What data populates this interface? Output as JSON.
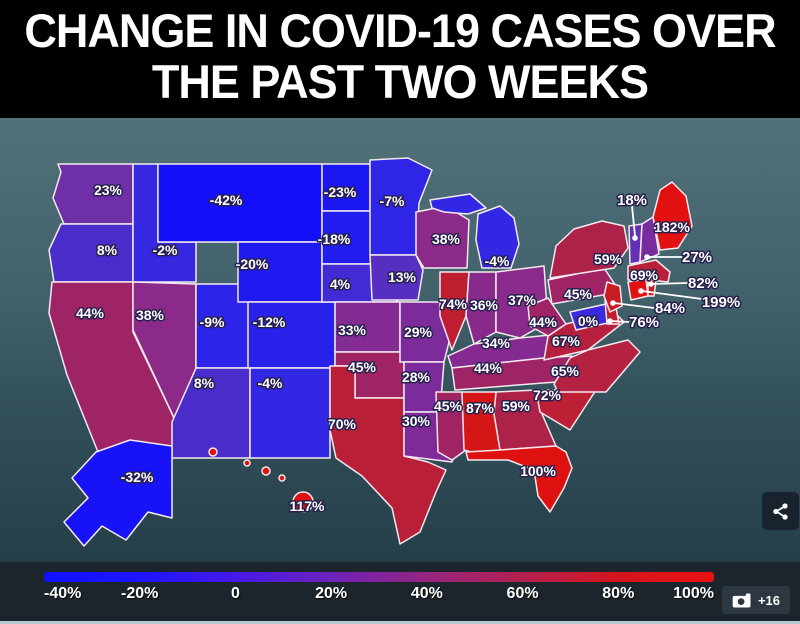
{
  "header": {
    "title": "CHANGE IN COVID-19 CASES OVER THE PAST TWO WEEKS",
    "title_lines": [
      "CHANGE IN COVID-19 CASES OVER",
      "THE PAST TWO WEEKS"
    ]
  },
  "overlay": {
    "photo_count_label": "+16"
  },
  "icons": {
    "share": "share-nodes-icon",
    "camera": "camera-icon"
  },
  "chart_data": {
    "type": "choropleth_map",
    "title": "Change in Covid-19 cases over the past two weeks",
    "geography": "United States (50 states)",
    "unit": "% change in cases",
    "legend": {
      "position": "bottom",
      "ticks": [
        "-40%",
        "-20%",
        "0",
        "20%",
        "40%",
        "60%",
        "80%",
        "100%"
      ],
      "tick_values": [
        -40,
        -20,
        0,
        20,
        40,
        60,
        80,
        100
      ],
      "gradient_stops": [
        "#1111ff",
        "#1d15fb",
        "#4619e6",
        "#6e22bb",
        "#95257f",
        "#b21f4e",
        "#d4151e",
        "#e81010"
      ]
    },
    "states": [
      {
        "id": "WA",
        "name": "Washington",
        "value": 23,
        "label": "23%",
        "color": "#6e2fa7",
        "callout": false
      },
      {
        "id": "OR",
        "name": "Oregon",
        "value": 8,
        "label": "8%",
        "color": "#4a2ccb",
        "callout": false
      },
      {
        "id": "CA",
        "name": "California",
        "value": 44,
        "label": "44%",
        "color": "#9e2466",
        "callout": false
      },
      {
        "id": "ID",
        "name": "Idaho",
        "value": -2,
        "label": "-2%",
        "color": "#3628e0",
        "callout": false
      },
      {
        "id": "NV",
        "name": "Nevada",
        "value": 38,
        "label": "38%",
        "color": "#8b2a88",
        "callout": false
      },
      {
        "id": "UT",
        "name": "Utah",
        "value": -9,
        "label": "-9%",
        "color": "#2c24e8",
        "callout": false
      },
      {
        "id": "AZ",
        "name": "Arizona",
        "value": 8,
        "label": "8%",
        "color": "#4a2ccb",
        "callout": false
      },
      {
        "id": "MT",
        "name": "Montana",
        "value": -42,
        "label": "-42%",
        "color": "#1310f9",
        "callout": false
      },
      {
        "id": "WY",
        "name": "Wyoming",
        "value": -20,
        "label": "-20%",
        "color": "#1e1af0",
        "callout": false
      },
      {
        "id": "CO",
        "name": "Colorado",
        "value": -12,
        "label": "-12%",
        "color": "#2821ea",
        "callout": false
      },
      {
        "id": "NM",
        "name": "New Mexico",
        "value": -4,
        "label": "-4%",
        "color": "#3227e3",
        "callout": false
      },
      {
        "id": "ND",
        "name": "North Dakota",
        "value": -23,
        "label": "-23%",
        "color": "#1b17f2",
        "callout": false
      },
      {
        "id": "SD",
        "name": "South Dakota",
        "value": -18,
        "label": "-18%",
        "color": "#211dee",
        "callout": false
      },
      {
        "id": "NE",
        "name": "Nebraska",
        "value": 4,
        "label": "4%",
        "color": "#422bd4",
        "callout": false
      },
      {
        "id": "KS",
        "name": "Kansas",
        "value": 33,
        "label": "33%",
        "color": "#832b92",
        "callout": false
      },
      {
        "id": "OK",
        "name": "Oklahoma",
        "value": 45,
        "label": "45%",
        "color": "#a02463",
        "callout": false
      },
      {
        "id": "TX",
        "name": "Texas",
        "value": 70,
        "label": "70%",
        "color": "#ba1f38",
        "callout": false
      },
      {
        "id": "MN",
        "name": "Minnesota",
        "value": -7,
        "label": "-7%",
        "color": "#2e25e6",
        "callout": false
      },
      {
        "id": "IA",
        "name": "Iowa",
        "value": 13,
        "label": "13%",
        "color": "#562ec0",
        "callout": false
      },
      {
        "id": "MO",
        "name": "Missouri",
        "value": 29,
        "label": "29%",
        "color": "#7c2b9a",
        "callout": false
      },
      {
        "id": "AR",
        "name": "Arkansas",
        "value": 28,
        "label": "28%",
        "color": "#7a2c9c",
        "callout": false
      },
      {
        "id": "LA",
        "name": "Louisiana",
        "value": 30,
        "label": "30%",
        "color": "#7e2b98",
        "callout": false
      },
      {
        "id": "WI",
        "name": "Wisconsin",
        "value": 38,
        "label": "38%",
        "color": "#8b2a88",
        "callout": false
      },
      {
        "id": "IL",
        "name": "Illinois",
        "value": 74,
        "label": "74%",
        "color": "#bf1e31",
        "callout": false
      },
      {
        "id": "MI",
        "name": "Michigan",
        "value": -4,
        "label": "-4%",
        "color": "#3227e3",
        "callout": false
      },
      {
        "id": "IN",
        "name": "Indiana",
        "value": 36,
        "label": "36%",
        "color": "#882a8c",
        "callout": false
      },
      {
        "id": "OH",
        "name": "Ohio",
        "value": 37,
        "label": "37%",
        "color": "#8a2a8a",
        "callout": false
      },
      {
        "id": "KY",
        "name": "Kentucky",
        "value": 34,
        "label": "34%",
        "color": "#852a90",
        "callout": false
      },
      {
        "id": "TN",
        "name": "Tennessee",
        "value": 44,
        "label": "44%",
        "color": "#9e2466",
        "callout": false
      },
      {
        "id": "MS",
        "name": "Mississippi",
        "value": 45,
        "label": "45%",
        "color": "#a02463",
        "callout": false
      },
      {
        "id": "AL",
        "name": "Alabama",
        "value": 87,
        "label": "87%",
        "color": "#d41616",
        "callout": false
      },
      {
        "id": "GA",
        "name": "Georgia",
        "value": 59,
        "label": "59%",
        "color": "#ad2249",
        "callout": false
      },
      {
        "id": "FL",
        "name": "Florida",
        "value": 100,
        "label": "100%",
        "color": "#de1111",
        "callout": false
      },
      {
        "id": "SC",
        "name": "South Carolina",
        "value": 72,
        "label": "72%",
        "color": "#bd1f34",
        "callout": false
      },
      {
        "id": "NC",
        "name": "North Carolina",
        "value": 65,
        "label": "65%",
        "color": "#b52140",
        "callout": false
      },
      {
        "id": "VA",
        "name": "Virginia",
        "value": 67,
        "label": "67%",
        "color": "#b7203d",
        "callout": false
      },
      {
        "id": "WV",
        "name": "West Virginia",
        "value": 44,
        "label": "44%",
        "color": "#9e2466",
        "callout": false
      },
      {
        "id": "PA",
        "name": "Pennsylvania",
        "value": 45,
        "label": "45%",
        "color": "#a02463",
        "callout": false
      },
      {
        "id": "NY",
        "name": "New York",
        "value": 59,
        "label": "59%",
        "color": "#ad2249",
        "callout": false
      },
      {
        "id": "MD",
        "name": "Maryland",
        "value": 0,
        "label": "0%",
        "color": "#3a29dd",
        "callout": false
      },
      {
        "id": "DE",
        "name": "Delaware",
        "value": 76,
        "label": "76%",
        "color": "#c11d2e",
        "callout": true
      },
      {
        "id": "NJ",
        "name": "New Jersey",
        "value": 84,
        "label": "84%",
        "color": "#c91b22",
        "callout": true
      },
      {
        "id": "VT",
        "name": "Vermont",
        "value": 18,
        "label": "18%",
        "color": "#6230b3",
        "callout": true
      },
      {
        "id": "NH",
        "name": "New Hampshire",
        "value": 27,
        "label": "27%",
        "color": "#782c9e",
        "callout": true
      },
      {
        "id": "MA",
        "name": "Massachusetts",
        "value": 69,
        "label": "69%",
        "color": "#b9203a",
        "callout": false
      },
      {
        "id": "CT",
        "name": "Connecticut",
        "value": 199,
        "label": "199%",
        "color": "#e21010",
        "callout": true
      },
      {
        "id": "RI",
        "name": "Rhode Island",
        "value": 82,
        "label": "82%",
        "color": "#c61c26",
        "callout": true
      },
      {
        "id": "ME",
        "name": "Maine",
        "value": 182,
        "label": "182%",
        "color": "#e21010",
        "callout": false
      },
      {
        "id": "AK",
        "name": "Alaska",
        "value": -32,
        "label": "-32%",
        "color": "#1713f6",
        "callout": false
      },
      {
        "id": "HI",
        "name": "Hawaii",
        "value": 117,
        "label": "117%",
        "color": "#e01010",
        "callout": false
      }
    ]
  }
}
